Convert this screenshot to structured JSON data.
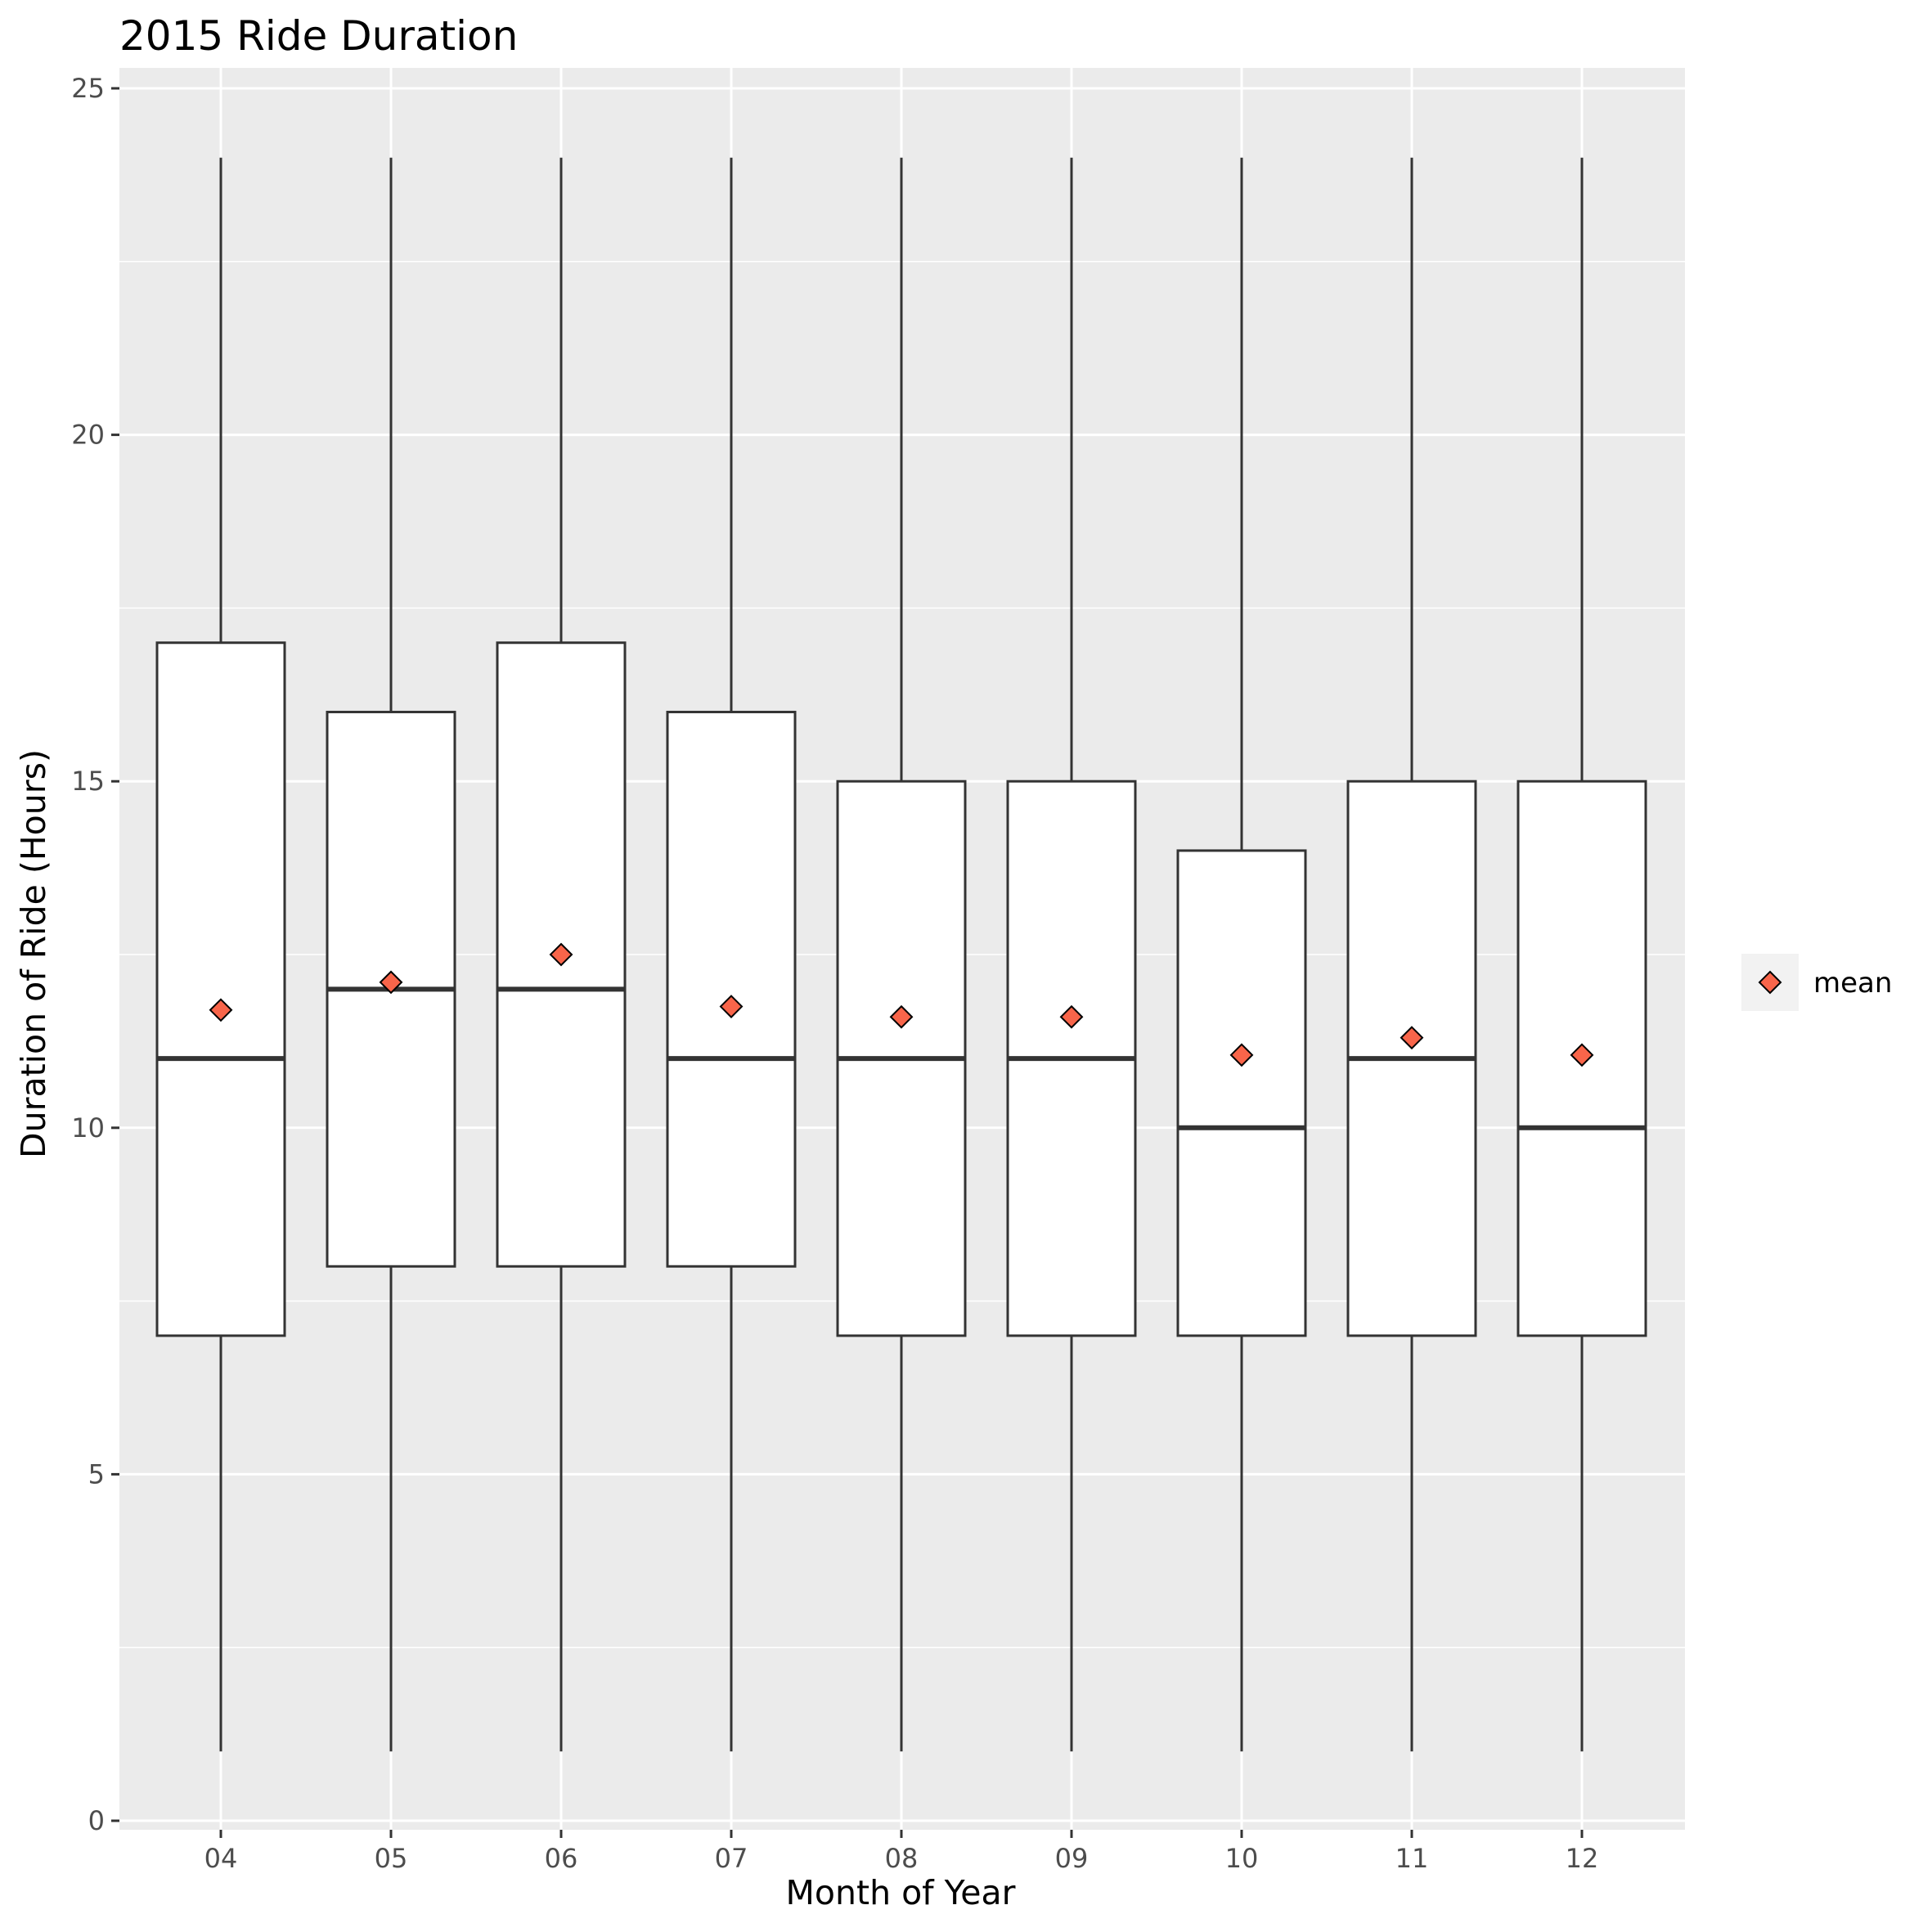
{
  "chart_data": {
    "type": "boxplot",
    "title": "2015 Ride Duration",
    "xlabel": "Month of Year",
    "ylabel": "Duration of Ride (Hours)",
    "ylim": [
      0,
      25
    ],
    "yticks": [
      0,
      5,
      10,
      15,
      20,
      25
    ],
    "grid": true,
    "legend_position": "right",
    "categories": [
      "04",
      "05",
      "06",
      "07",
      "08",
      "09",
      "10",
      "11",
      "12"
    ],
    "boxes": [
      {
        "category": "04",
        "whisker_low": 1,
        "q1": 7,
        "median": 11,
        "q3": 17,
        "whisker_high": 24,
        "mean": 11.7
      },
      {
        "category": "05",
        "whisker_low": 1,
        "q1": 8,
        "median": 12,
        "q3": 16,
        "whisker_high": 24,
        "mean": 12.1
      },
      {
        "category": "06",
        "whisker_low": 1,
        "q1": 8,
        "median": 12,
        "q3": 17,
        "whisker_high": 24,
        "mean": 12.5
      },
      {
        "category": "07",
        "whisker_low": 1,
        "q1": 8,
        "median": 11,
        "q3": 16,
        "whisker_high": 24,
        "mean": 11.75
      },
      {
        "category": "08",
        "whisker_low": 1,
        "q1": 7,
        "median": 11,
        "q3": 15,
        "whisker_high": 24,
        "mean": 11.6
      },
      {
        "category": "09",
        "whisker_low": 1,
        "q1": 7,
        "median": 11,
        "q3": 15,
        "whisker_high": 24,
        "mean": 11.6
      },
      {
        "category": "10",
        "whisker_low": 1,
        "q1": 7,
        "median": 10,
        "q3": 14,
        "whisker_high": 24,
        "mean": 11.05
      },
      {
        "category": "11",
        "whisker_low": 1,
        "q1": 7,
        "median": 11,
        "q3": 15,
        "whisker_high": 24,
        "mean": 11.3
      },
      {
        "category": "12",
        "whisker_low": 1,
        "q1": 7,
        "median": 10,
        "q3": 15,
        "whisker_high": 24,
        "mean": 11.05
      }
    ],
    "legend": [
      {
        "label": "mean",
        "marker": "diamond"
      }
    ],
    "colors": {
      "panel_background": "#ebebeb",
      "grid_major": "#ffffff",
      "box_fill": "#ffffff",
      "box_line": "#333333",
      "mean_fill": "#f8654a",
      "mean_stroke": "#000000",
      "legend_key_background": "#f2f2f2"
    }
  }
}
